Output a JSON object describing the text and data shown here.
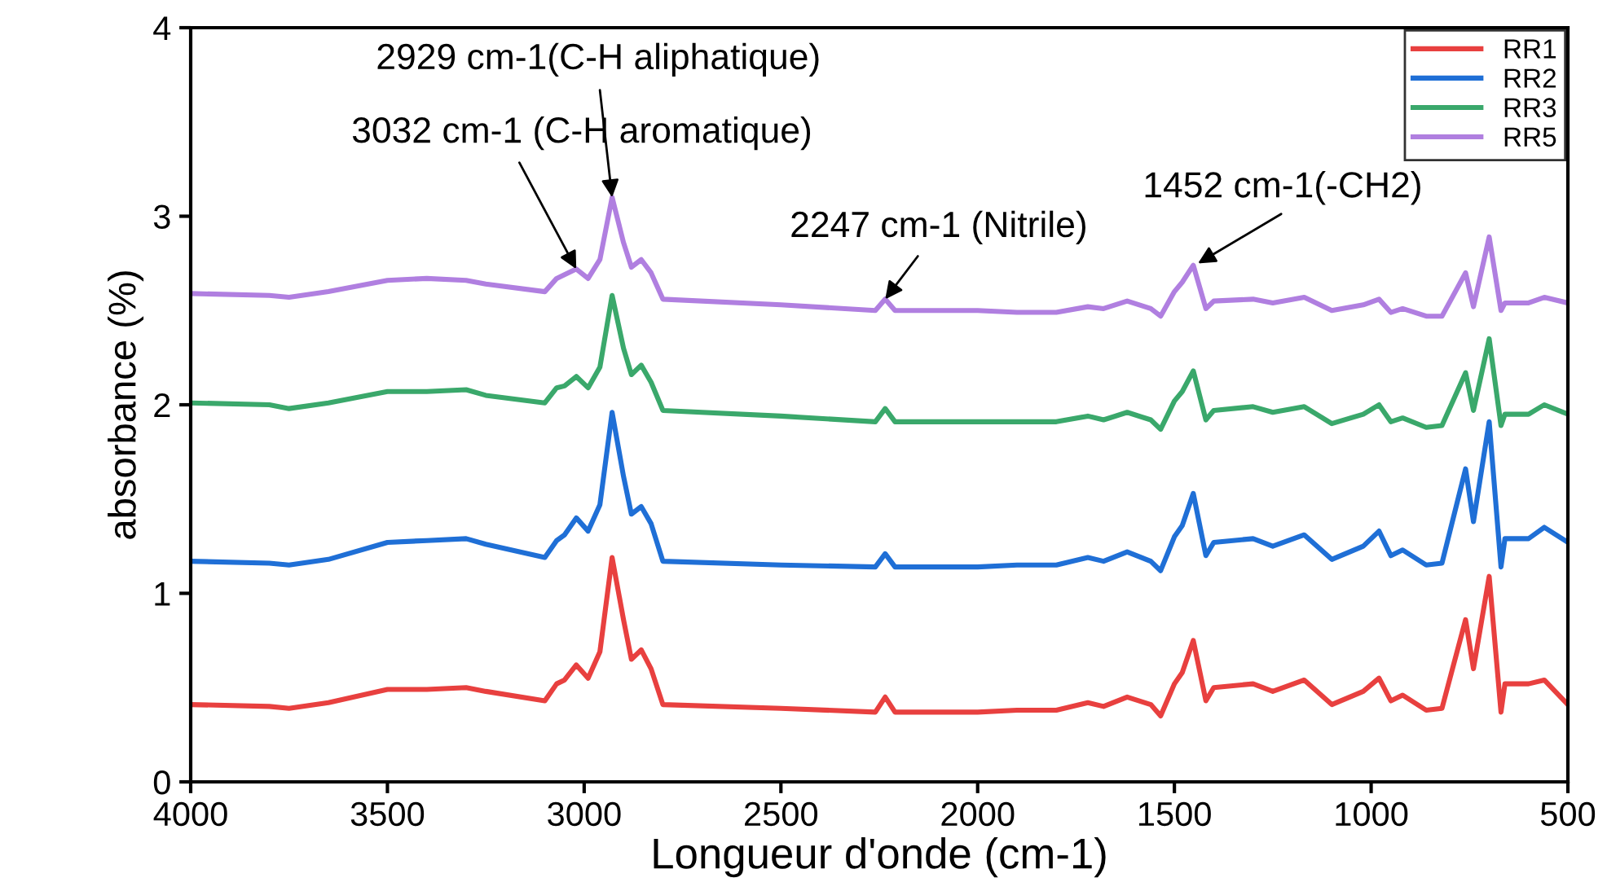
{
  "chart_data": {
    "type": "line",
    "xlabel": "Longueur d'onde (cm-1)",
    "ylabel": "absorbance (%)",
    "x": [
      4000,
      3800,
      3750,
      3650,
      3500,
      3400,
      3300,
      3250,
      3100,
      3070,
      3050,
      3020,
      2990,
      2960,
      2929,
      2900,
      2880,
      2855,
      2830,
      2800,
      2500,
      2260,
      2235,
      2210,
      2000,
      1900,
      1800,
      1720,
      1680,
      1620,
      1560,
      1535,
      1500,
      1480,
      1452,
      1420,
      1400,
      1300,
      1250,
      1170,
      1100,
      1020,
      980,
      950,
      920,
      860,
      820,
      760,
      740,
      700,
      670,
      660,
      600,
      560,
      500
    ],
    "series": [
      {
        "name": "RR1",
        "color": "#e8403f",
        "values": [
          0.41,
          0.4,
          0.39,
          0.42,
          0.49,
          0.49,
          0.5,
          0.48,
          0.43,
          0.52,
          0.54,
          0.62,
          0.55,
          0.69,
          1.19,
          0.86,
          0.65,
          0.7,
          0.6,
          0.41,
          0.39,
          0.37,
          0.45,
          0.37,
          0.37,
          0.38,
          0.38,
          0.42,
          0.4,
          0.45,
          0.41,
          0.35,
          0.52,
          0.58,
          0.75,
          0.43,
          0.5,
          0.52,
          0.48,
          0.54,
          0.41,
          0.48,
          0.55,
          0.43,
          0.46,
          0.38,
          0.39,
          0.86,
          0.6,
          1.09,
          0.37,
          0.52,
          0.52,
          0.54,
          0.41
        ]
      },
      {
        "name": "RR2",
        "color": "#1f6fd6",
        "values": [
          1.17,
          1.16,
          1.15,
          1.18,
          1.27,
          1.28,
          1.29,
          1.26,
          1.19,
          1.28,
          1.31,
          1.4,
          1.33,
          1.47,
          1.96,
          1.62,
          1.42,
          1.46,
          1.37,
          1.17,
          1.15,
          1.14,
          1.21,
          1.14,
          1.14,
          1.15,
          1.15,
          1.19,
          1.17,
          1.22,
          1.17,
          1.12,
          1.3,
          1.36,
          1.53,
          1.2,
          1.27,
          1.29,
          1.25,
          1.31,
          1.18,
          1.25,
          1.33,
          1.2,
          1.23,
          1.15,
          1.16,
          1.66,
          1.38,
          1.91,
          1.14,
          1.29,
          1.29,
          1.35,
          1.27
        ]
      },
      {
        "name": "RR3",
        "color": "#3aa86b",
        "values": [
          2.01,
          2.0,
          1.98,
          2.01,
          2.07,
          2.07,
          2.08,
          2.05,
          2.01,
          2.09,
          2.1,
          2.15,
          2.09,
          2.2,
          2.58,
          2.3,
          2.16,
          2.21,
          2.12,
          1.97,
          1.94,
          1.91,
          1.98,
          1.91,
          1.91,
          1.91,
          1.91,
          1.94,
          1.92,
          1.96,
          1.92,
          1.87,
          2.02,
          2.07,
          2.18,
          1.92,
          1.97,
          1.99,
          1.96,
          1.99,
          1.9,
          1.95,
          2.0,
          1.91,
          1.93,
          1.88,
          1.89,
          2.17,
          1.97,
          2.35,
          1.89,
          1.95,
          1.95,
          2.0,
          1.95
        ]
      },
      {
        "name": "RR5",
        "color": "#b07fe0",
        "values": [
          2.59,
          2.58,
          2.57,
          2.6,
          2.66,
          2.67,
          2.66,
          2.64,
          2.6,
          2.67,
          2.69,
          2.72,
          2.67,
          2.77,
          3.1,
          2.86,
          2.73,
          2.77,
          2.7,
          2.56,
          2.53,
          2.5,
          2.56,
          2.5,
          2.5,
          2.49,
          2.49,
          2.52,
          2.51,
          2.55,
          2.51,
          2.47,
          2.6,
          2.65,
          2.74,
          2.51,
          2.55,
          2.56,
          2.54,
          2.57,
          2.5,
          2.53,
          2.56,
          2.49,
          2.51,
          2.47,
          2.47,
          2.7,
          2.52,
          2.89,
          2.5,
          2.54,
          2.54,
          2.57,
          2.54
        ]
      }
    ],
    "xlim": [
      4000,
      500
    ],
    "xticks": [
      4000,
      3500,
      3000,
      2500,
      2000,
      1500,
      1000,
      500
    ],
    "ylim": [
      0,
      4
    ],
    "yticks": [
      0,
      1,
      2,
      3,
      4
    ],
    "annotations": [
      {
        "text": "2929 cm-1(C-H aliphatique)",
        "x": 2929,
        "y": 3.1
      },
      {
        "text": "3032 cm-1 (C-H aromatique)",
        "x": 3020,
        "y": 2.72
      },
      {
        "text": "2247 cm-1 (Nitrile)",
        "x": 2235,
        "y": 2.56
      },
      {
        "text": "1452 cm-1(-CH2)",
        "x": 1440,
        "y": 2.75
      }
    ],
    "legend": "top right",
    "grid": false,
    "marker": "none",
    "line_style": "solid"
  }
}
